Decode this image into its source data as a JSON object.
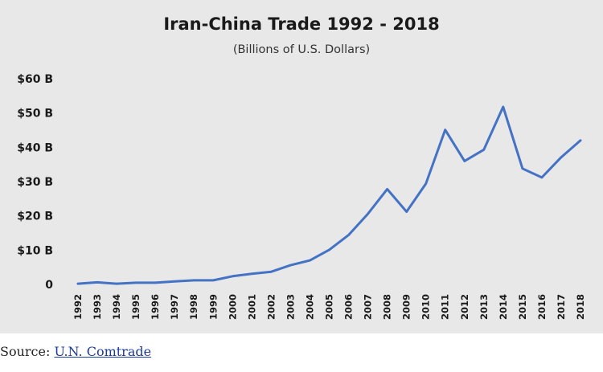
{
  "chart_data": {
    "type": "line",
    "title": "Iran-China Trade 1992 - 2018",
    "subtitle": "(Billions of U.S. Dollars)",
    "x": [
      "1992",
      "1993",
      "1994",
      "1995",
      "1996",
      "1997",
      "1998",
      "1999",
      "2000",
      "2001",
      "2002",
      "2003",
      "2004",
      "2005",
      "2006",
      "2007",
      "2008",
      "2009",
      "2010",
      "2011",
      "2012",
      "2013",
      "2014",
      "2015",
      "2016",
      "2017",
      "2018"
    ],
    "series": [
      {
        "values": [
          0.2,
          0.6,
          0.2,
          0.5,
          0.5,
          0.9,
          1.2,
          1.2,
          2.4,
          3.1,
          3.7,
          5.6,
          7.0,
          10.1,
          14.4,
          20.6,
          27.8,
          21.2,
          29.4,
          45.1,
          36.0,
          39.3,
          51.8,
          33.8,
          31.2,
          37.1,
          42.0
        ]
      }
    ],
    "yticks": [
      0,
      10,
      20,
      30,
      40,
      50,
      60
    ],
    "ytick_labels": [
      "0",
      "$10 B",
      "$20 B",
      "$30 B",
      "$40 B",
      "$50 B",
      "$60 B"
    ],
    "ylim": [
      0,
      60
    ],
    "grid": false,
    "line_color": "#4472c4"
  },
  "source": {
    "prefix": "Source: ",
    "link_text": "U.N. Comtrade"
  }
}
